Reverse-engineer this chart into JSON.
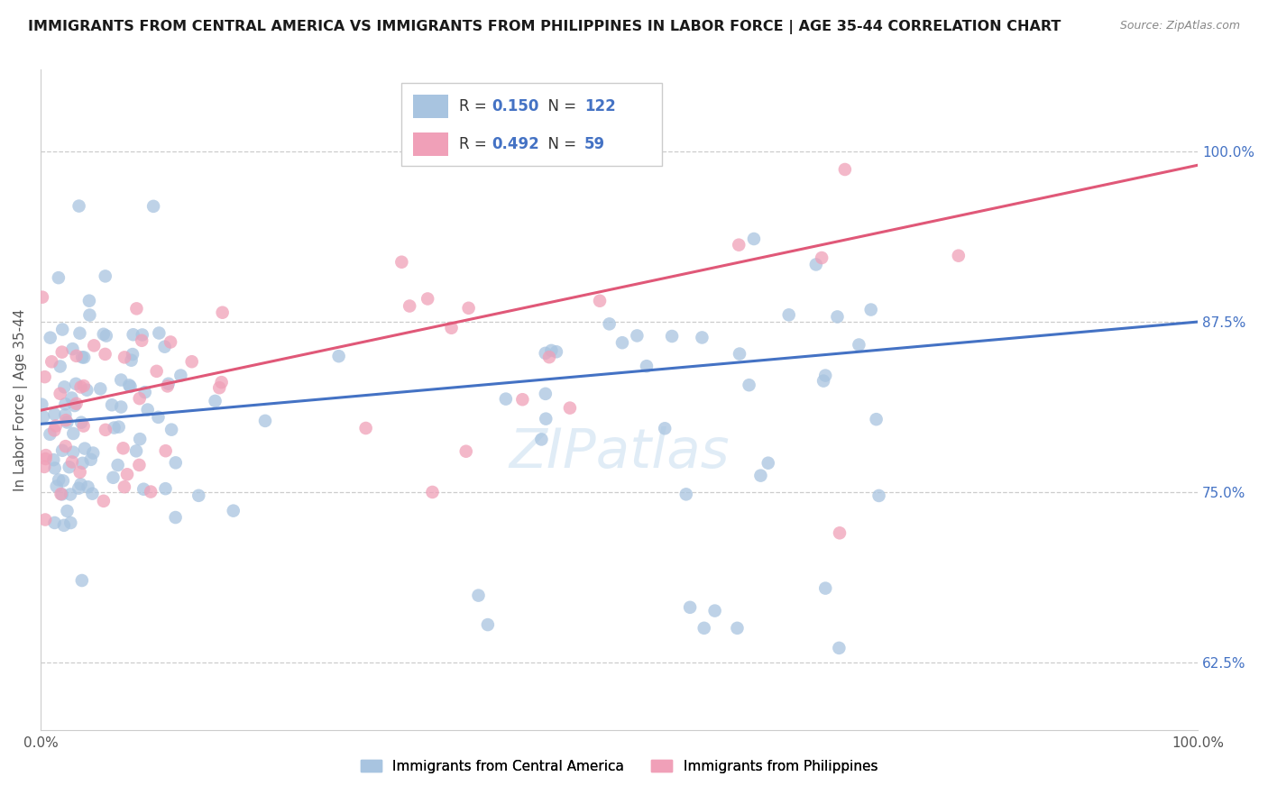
{
  "title": "IMMIGRANTS FROM CENTRAL AMERICA VS IMMIGRANTS FROM PHILIPPINES IN LABOR FORCE | AGE 35-44 CORRELATION CHART",
  "source": "Source: ZipAtlas.com",
  "ylabel": "In Labor Force | Age 35-44",
  "legend_blue_label": "Immigrants from Central America",
  "legend_pink_label": "Immigrants from Philippines",
  "legend_blue_R": "0.150",
  "legend_blue_N": "122",
  "legend_pink_R": "0.492",
  "legend_pink_N": "59",
  "watermark": "ZIPatlas",
  "blue_color": "#a8c4e0",
  "pink_color": "#f0a0b8",
  "blue_line_color": "#4472c4",
  "pink_line_color": "#e05878",
  "right_ytick_labels": [
    "62.5%",
    "75.0%",
    "87.5%",
    "100.0%"
  ],
  "right_ytick_values": [
    0.625,
    0.75,
    0.875,
    1.0
  ],
  "xmin": 0.0,
  "xmax": 1.0,
  "ymin": 0.575,
  "ymax": 1.06,
  "blue_trend_x": [
    0.0,
    1.0
  ],
  "blue_trend_y": [
    0.8,
    0.875
  ],
  "pink_trend_x": [
    0.0,
    1.0
  ],
  "pink_trend_y": [
    0.81,
    0.99
  ]
}
